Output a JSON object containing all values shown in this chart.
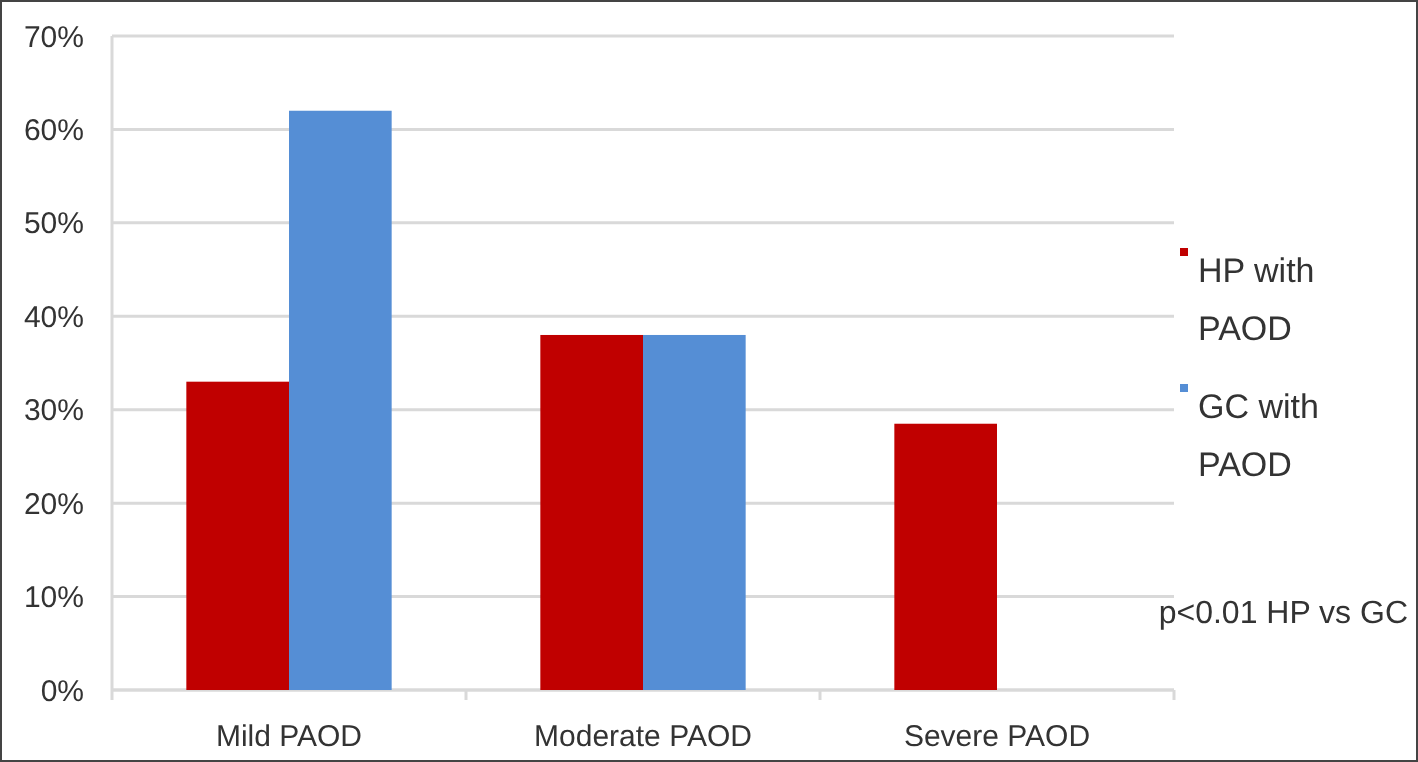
{
  "chart_data": {
    "type": "bar",
    "categories": [
      "Mild PAOD",
      "Moderate PAOD",
      "Severe PAOD"
    ],
    "series": [
      {
        "name": "HP with PAOD",
        "color": "#c00000",
        "values": [
          33,
          38,
          28.5
        ]
      },
      {
        "name": "GC with PAOD",
        "color": "#558ed5",
        "values": [
          62,
          38,
          null
        ]
      }
    ],
    "ylim": [
      0,
      70
    ],
    "yticks": [
      {
        "value": 0,
        "label": "0%"
      },
      {
        "value": 10,
        "label": "10%"
      },
      {
        "value": 20,
        "label": "20%"
      },
      {
        "value": 30,
        "label": "30%"
      },
      {
        "value": 40,
        "label": "40%"
      },
      {
        "value": 50,
        "label": "50%"
      },
      {
        "value": 60,
        "label": "60%"
      },
      {
        "value": 70,
        "label": "70%"
      }
    ],
    "grid": "y",
    "legend": "right",
    "annotations": [
      "p<0.01 HP vs GC"
    ]
  }
}
